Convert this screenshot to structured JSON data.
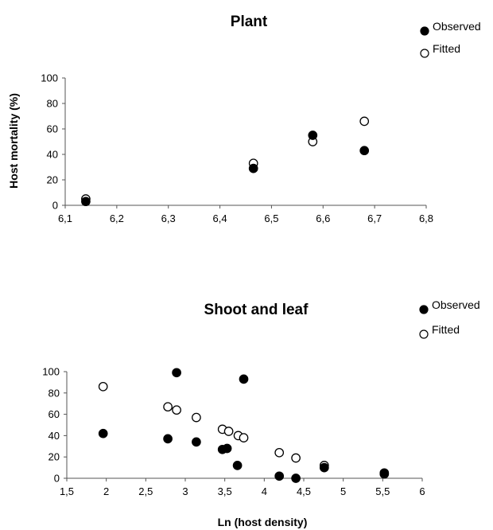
{
  "chart_data": [
    {
      "type": "scatter",
      "title": "Plant",
      "xlabel": "",
      "ylabel": "Host mortality (%)",
      "xlim": [
        6.1,
        6.8
      ],
      "ylim": [
        0,
        100
      ],
      "x_ticks": [
        "6,1",
        "6,2",
        "6,3",
        "6,4",
        "6,5",
        "6,6",
        "6,7",
        "6,8"
      ],
      "y_ticks": [
        "0",
        "20",
        "40",
        "60",
        "80",
        "100"
      ],
      "legend_position": "top-right",
      "series": [
        {
          "name": "Observed",
          "marker": "filled",
          "color": "#000000",
          "points": [
            [
              6.14,
              3
            ],
            [
              6.465,
              29
            ],
            [
              6.58,
              55
            ],
            [
              6.68,
              43
            ]
          ]
        },
        {
          "name": "Fitted",
          "marker": "open",
          "color": "#000000",
          "points": [
            [
              6.14,
              5
            ],
            [
              6.465,
              33
            ],
            [
              6.58,
              50
            ],
            [
              6.68,
              66
            ]
          ]
        }
      ]
    },
    {
      "type": "scatter",
      "title": "Shoot and leaf",
      "xlabel": "Ln (host density)",
      "ylabel": "",
      "xlim": [
        1.5,
        6
      ],
      "ylim": [
        0,
        100
      ],
      "x_ticks": [
        "1,5",
        "2",
        "2,5",
        "3",
        "3,5",
        "4",
        "4,5",
        "5",
        "5,5",
        "6"
      ],
      "y_ticks": [
        "0",
        "20",
        "40",
        "60",
        "80",
        "100"
      ],
      "legend_position": "top-right",
      "series": [
        {
          "name": "Observed",
          "marker": "filled",
          "color": "#000000",
          "points": [
            [
              1.96,
              42
            ],
            [
              2.78,
              37
            ],
            [
              2.89,
              99
            ],
            [
              3.14,
              34
            ],
            [
              3.47,
              27
            ],
            [
              3.53,
              28
            ],
            [
              3.66,
              12
            ],
            [
              3.74,
              93
            ],
            [
              4.19,
              2
            ],
            [
              4.4,
              0
            ],
            [
              4.76,
              10
            ],
            [
              5.52,
              5
            ]
          ]
        },
        {
          "name": "Fitted",
          "marker": "open",
          "color": "#000000",
          "points": [
            [
              1.96,
              86
            ],
            [
              2.78,
              67
            ],
            [
              2.89,
              64
            ],
            [
              3.14,
              57
            ],
            [
              3.47,
              46
            ],
            [
              3.55,
              44
            ],
            [
              3.67,
              40
            ],
            [
              3.74,
              38
            ],
            [
              4.19,
              24
            ],
            [
              4.4,
              19
            ],
            [
              4.76,
              12
            ],
            [
              5.52,
              4
            ]
          ]
        }
      ]
    }
  ]
}
